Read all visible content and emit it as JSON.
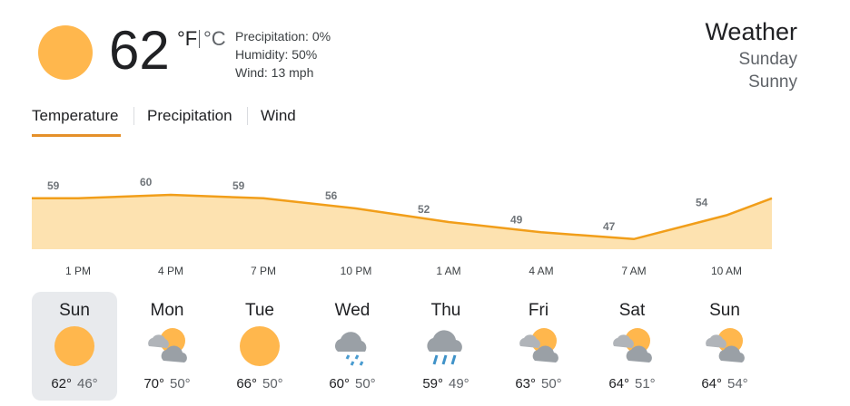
{
  "current": {
    "icon": "sun-icon",
    "temperature": "62",
    "unit_f": "°F",
    "unit_c": "°C",
    "precipitation": "Precipitation: 0%",
    "humidity": "Humidity: 50%",
    "wind": "Wind: 13 mph"
  },
  "header": {
    "title": "Weather",
    "day": "Sunday",
    "condition": "Sunny"
  },
  "tabs": [
    {
      "label": "Temperature",
      "active": true
    },
    {
      "label": "Precipitation",
      "active": false
    },
    {
      "label": "Wind",
      "active": false
    }
  ],
  "colors": {
    "accent": "#e5902a",
    "chart_fill": "#fde2b0",
    "chart_line": "#f19e1a",
    "sun": "#ffb74d",
    "selected_bg": "#e8eaed"
  },
  "chart_data": {
    "type": "area",
    "x": [
      "1 PM",
      "4 PM",
      "7 PM",
      "10 PM",
      "1 AM",
      "4 AM",
      "7 AM",
      "10 AM"
    ],
    "values": [
      59,
      60,
      59,
      56,
      52,
      49,
      47,
      54
    ],
    "data_labels": [
      "59",
      "60",
      "59",
      "56",
      "52",
      "49",
      "47",
      "54"
    ],
    "grid": false
  },
  "forecast": [
    {
      "day": "Sun",
      "icon": "sun-icon",
      "high": "62°",
      "low": "46°",
      "selected": true
    },
    {
      "day": "Mon",
      "icon": "partly-cloudy-icon",
      "high": "70°",
      "low": "50°",
      "selected": false
    },
    {
      "day": "Tue",
      "icon": "sun-icon",
      "high": "66°",
      "low": "50°",
      "selected": false
    },
    {
      "day": "Wed",
      "icon": "drizzle-icon",
      "high": "60°",
      "low": "50°",
      "selected": false
    },
    {
      "day": "Thu",
      "icon": "rain-icon",
      "high": "59°",
      "low": "49°",
      "selected": false
    },
    {
      "day": "Fri",
      "icon": "partly-cloudy-icon",
      "high": "63°",
      "low": "50°",
      "selected": false
    },
    {
      "day": "Sat",
      "icon": "partly-cloudy-icon",
      "high": "64°",
      "low": "51°",
      "selected": false
    },
    {
      "day": "Sun",
      "icon": "partly-cloudy-icon",
      "high": "64°",
      "low": "54°",
      "selected": false
    }
  ]
}
